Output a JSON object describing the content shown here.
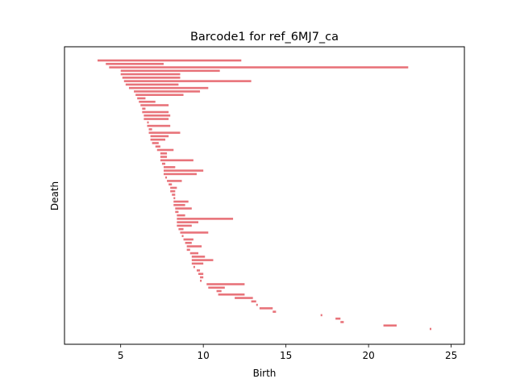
{
  "chart_data": {
    "type": "bar",
    "orientation": "horizontal",
    "title": "Barcode1 for ref_6MJ7_ca",
    "xlabel": "Birth",
    "ylabel": "Death",
    "xlim": [
      1.6,
      25.8
    ],
    "xticks": [
      5,
      10,
      15,
      20,
      25
    ],
    "y_ticks_shown": false,
    "grid": false,
    "legend": "none",
    "bar_color": "#e8737a",
    "bars": [
      [
        3.6,
        12.3
      ],
      [
        4.1,
        7.6
      ],
      [
        4.3,
        22.4
      ],
      [
        5.0,
        11.0
      ],
      [
        5.0,
        8.6
      ],
      [
        5.1,
        8.6
      ],
      [
        5.2,
        12.9
      ],
      [
        5.3,
        8.5
      ],
      [
        5.5,
        10.3
      ],
      [
        5.8,
        9.8
      ],
      [
        5.9,
        8.8
      ],
      [
        6.0,
        6.5
      ],
      [
        6.1,
        7.1
      ],
      [
        6.2,
        7.9
      ],
      [
        6.3,
        6.5
      ],
      [
        6.3,
        7.9
      ],
      [
        6.4,
        8.0
      ],
      [
        6.4,
        7.9
      ],
      [
        6.6,
        6.7
      ],
      [
        6.6,
        8.0
      ],
      [
        6.7,
        6.9
      ],
      [
        6.7,
        8.6
      ],
      [
        6.8,
        7.9
      ],
      [
        6.8,
        7.7
      ],
      [
        6.9,
        7.3
      ],
      [
        7.1,
        7.4
      ],
      [
        7.2,
        8.2
      ],
      [
        7.4,
        7.8
      ],
      [
        7.4,
        7.8
      ],
      [
        7.4,
        9.4
      ],
      [
        7.5,
        7.7
      ],
      [
        7.6,
        8.3
      ],
      [
        7.6,
        10.0
      ],
      [
        7.6,
        9.6
      ],
      [
        7.7,
        7.8
      ],
      [
        7.8,
        8.7
      ],
      [
        7.9,
        8.1
      ],
      [
        8.0,
        8.4
      ],
      [
        8.0,
        8.3
      ],
      [
        8.1,
        8.3
      ],
      [
        8.2,
        8.3
      ],
      [
        8.2,
        9.1
      ],
      [
        8.2,
        8.9
      ],
      [
        8.3,
        9.3
      ],
      [
        8.3,
        8.5
      ],
      [
        8.4,
        8.9
      ],
      [
        8.4,
        11.8
      ],
      [
        8.4,
        9.7
      ],
      [
        8.4,
        9.3
      ],
      [
        8.5,
        8.8
      ],
      [
        8.6,
        10.3
      ],
      [
        8.7,
        8.8
      ],
      [
        8.8,
        9.4
      ],
      [
        8.9,
        9.3
      ],
      [
        9.0,
        9.9
      ],
      [
        9.0,
        9.2
      ],
      [
        9.2,
        9.7
      ],
      [
        9.3,
        10.1
      ],
      [
        9.3,
        10.6
      ],
      [
        9.3,
        10.0
      ],
      [
        9.4,
        9.5
      ],
      [
        9.6,
        9.8
      ],
      [
        9.7,
        10.0
      ],
      [
        9.8,
        10.0
      ],
      [
        9.8,
        9.9
      ],
      [
        10.2,
        12.5
      ],
      [
        10.3,
        11.3
      ],
      [
        10.8,
        11.1
      ],
      [
        10.9,
        12.5
      ],
      [
        11.9,
        13.0
      ],
      [
        12.9,
        13.2
      ],
      [
        13.2,
        13.3
      ],
      [
        13.4,
        14.2
      ],
      [
        14.2,
        14.4
      ],
      [
        17.1,
        17.2
      ],
      [
        18.0,
        18.3
      ],
      [
        18.3,
        18.5
      ],
      [
        20.9,
        21.7
      ],
      [
        23.7,
        23.8
      ]
    ]
  }
}
